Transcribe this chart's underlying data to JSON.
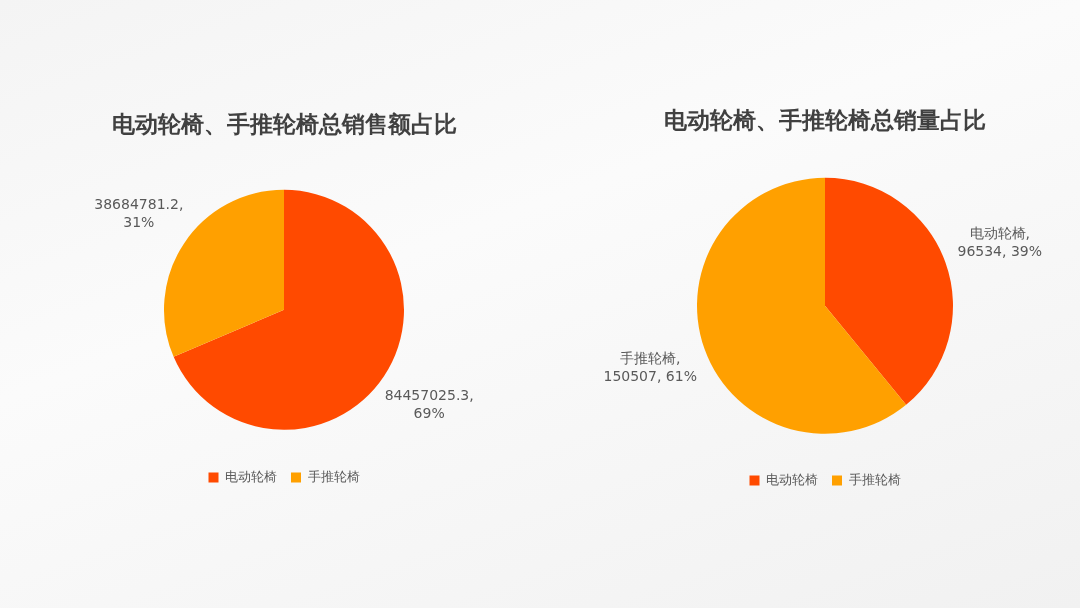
{
  "chart_data": [
    {
      "type": "pie",
      "title": "电动轮椅、手推轮椅总销售额占比",
      "categories": [
        "电动轮椅",
        "手推轮椅"
      ],
      "values": [
        84457025.3,
        38684781.2
      ],
      "colors": [
        "#ff4a00",
        "#ffa000"
      ],
      "value_labels": [
        "84457025.3, 69%",
        "38684781.2, 31%"
      ],
      "legend": "bottom"
    },
    {
      "type": "pie",
      "title": "电动轮椅、手推轮椅总销量占比",
      "categories": [
        "电动轮椅",
        "手推轮椅"
      ],
      "values": [
        96534,
        150507
      ],
      "colors": [
        "#ff4a00",
        "#ffa000"
      ],
      "value_labels": [
        "电动轮椅, 96534, 39%",
        "手推轮椅, 150507, 61%"
      ],
      "legend": "bottom"
    }
  ]
}
